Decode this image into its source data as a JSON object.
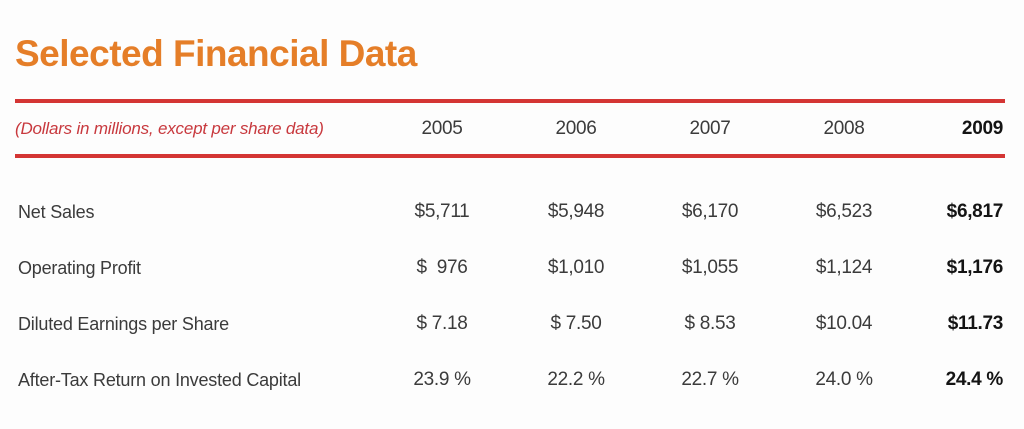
{
  "header": {
    "title": "Selected Financial Data",
    "note": "(Dollars in millions, except per share data)"
  },
  "colors": {
    "title_orange": "#E57E28",
    "rule_red": "#D43534",
    "note_red": "#C8393E",
    "body_text": "#3b3b3b",
    "emphasis_text": "#141414"
  },
  "table": {
    "columns": [
      "2005",
      "2006",
      "2007",
      "2008",
      "2009"
    ],
    "emphasized_column": "2009",
    "rows": [
      {
        "label": "Net Sales",
        "values": [
          "$5,711",
          "$5,948",
          "$6,170",
          "$6,523",
          "$6,817"
        ]
      },
      {
        "label": "Operating Profit",
        "values": [
          "$  976",
          "$1,010",
          "$1,055",
          "$1,124",
          "$1,176"
        ]
      },
      {
        "label": "Diluted Earnings per Share",
        "values": [
          "$ 7.18",
          "$ 7.50",
          "$ 8.53",
          "$10.04",
          "$11.73"
        ]
      },
      {
        "label": "After-Tax Return on Invested Capital",
        "values": [
          "23.9 %",
          "22.2 %",
          "22.7 %",
          "24.0 %",
          "24.4 %"
        ]
      }
    ]
  }
}
